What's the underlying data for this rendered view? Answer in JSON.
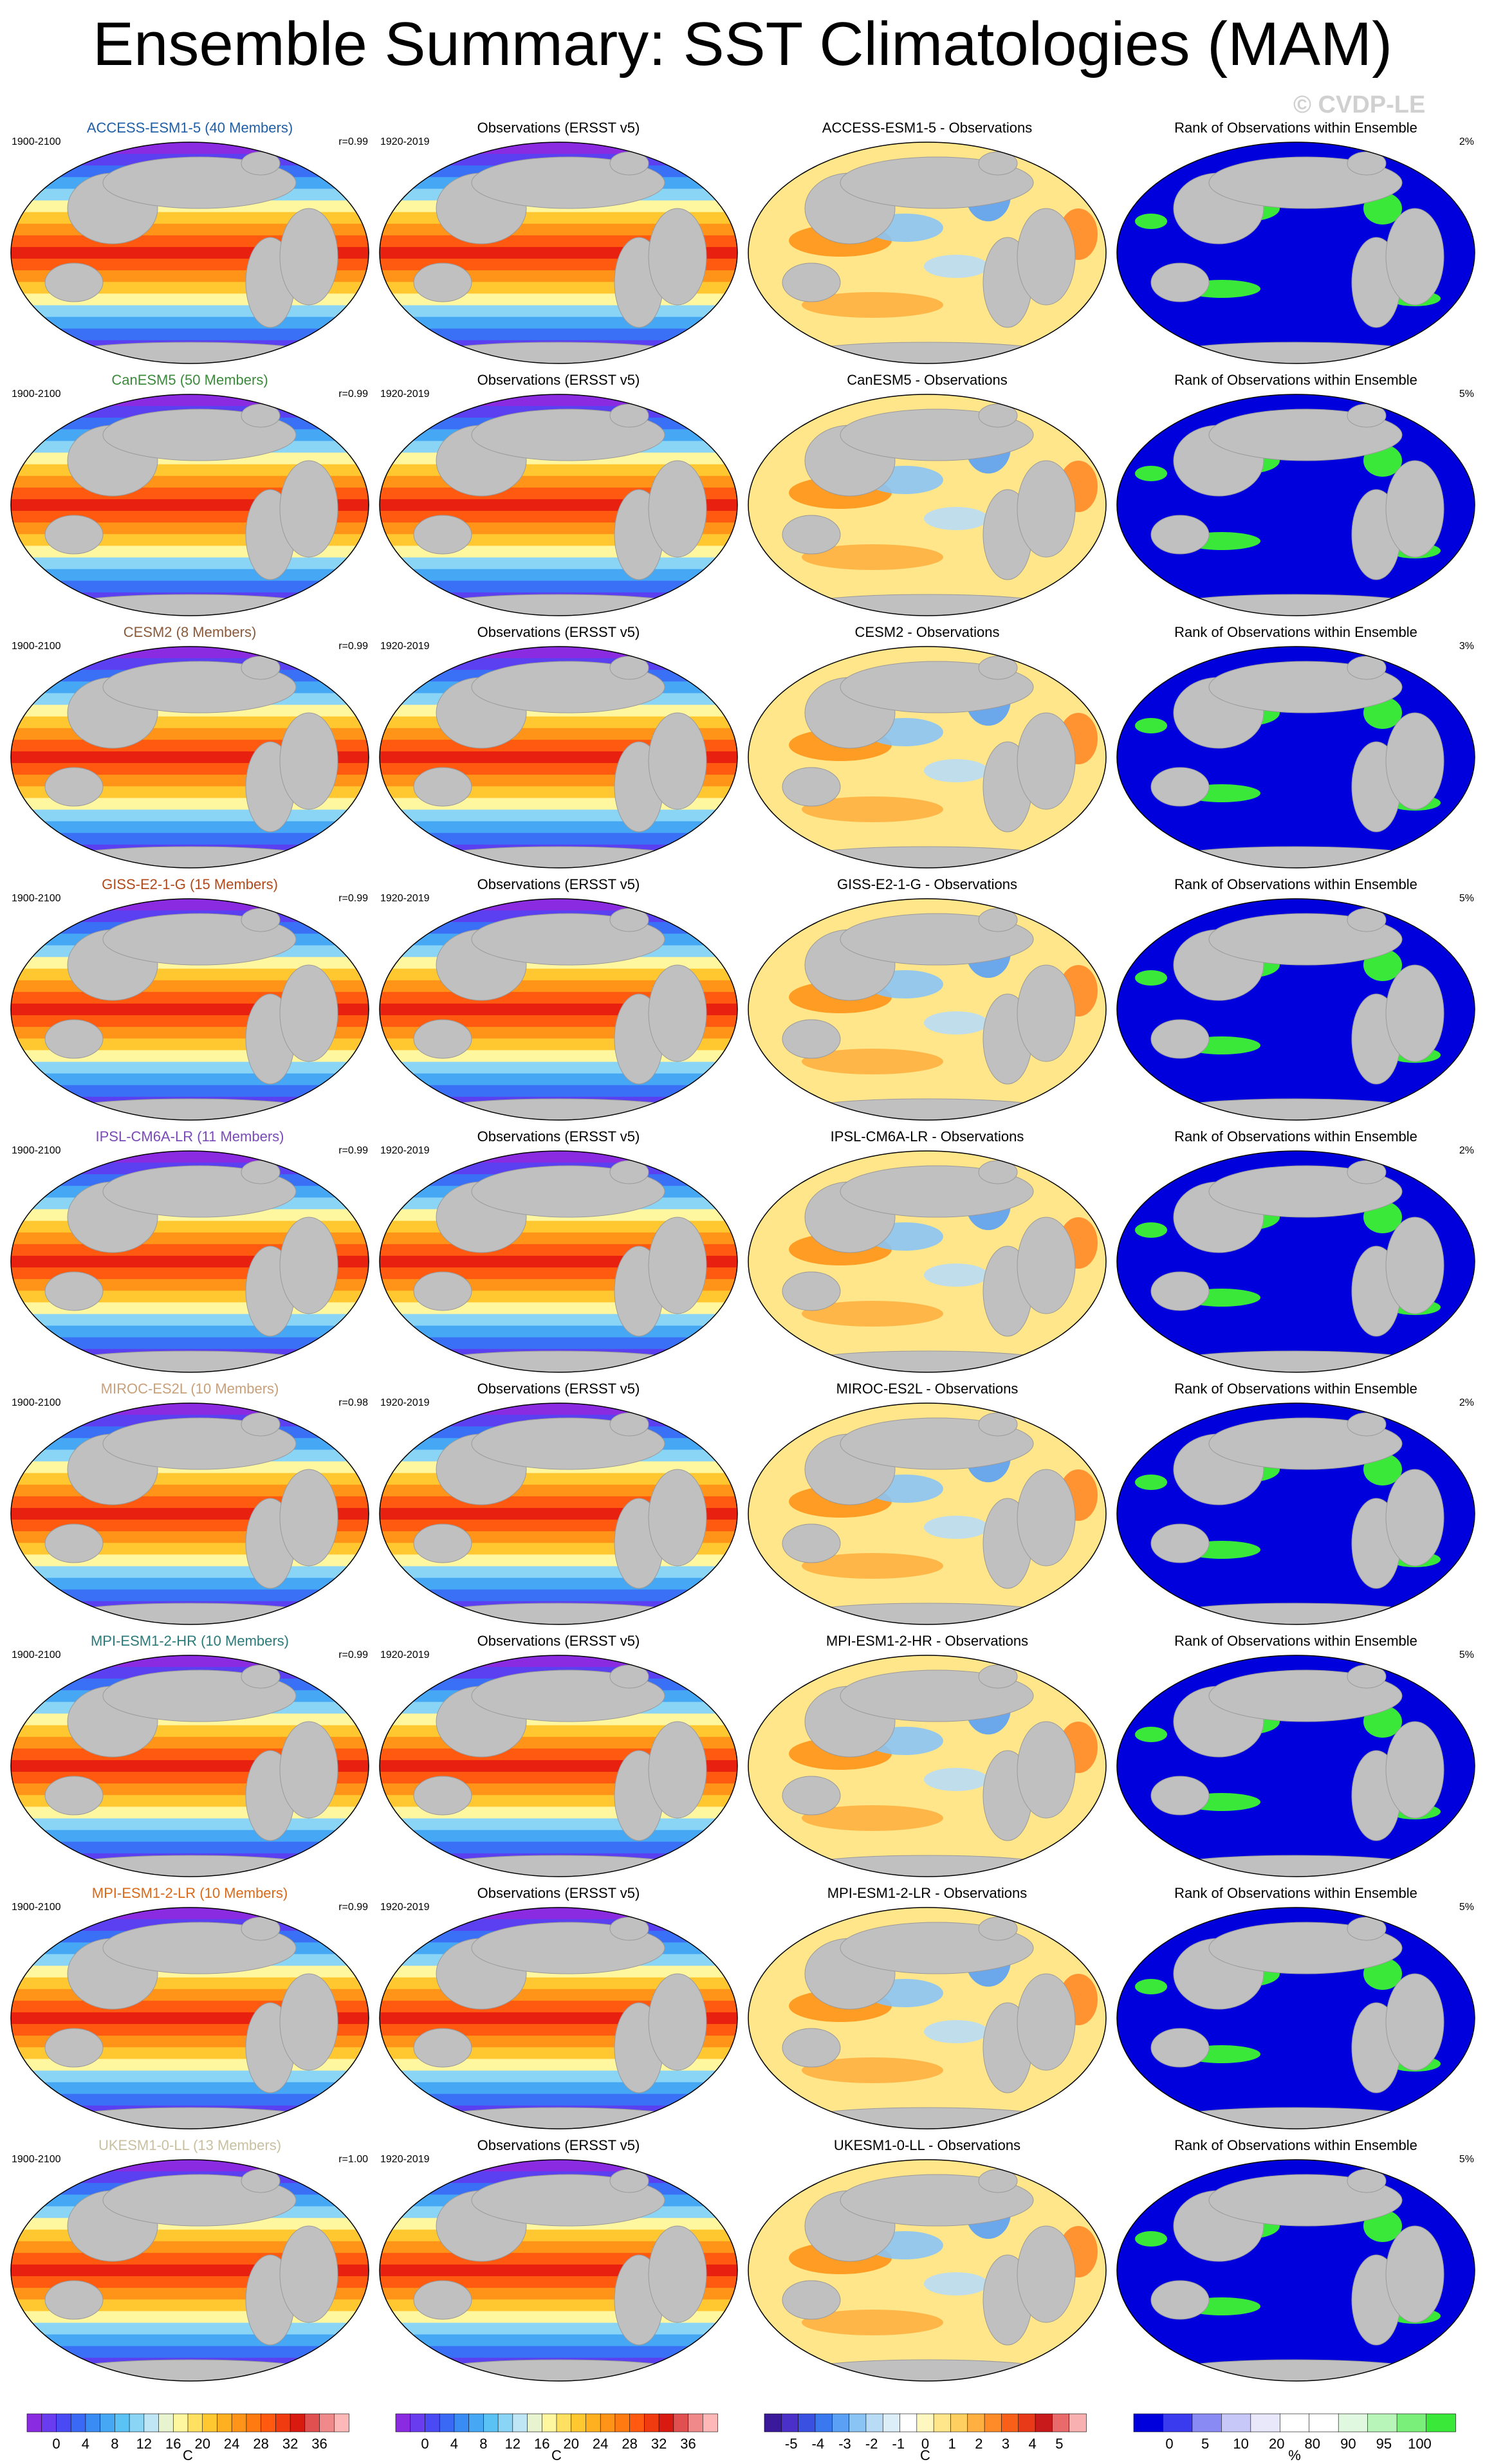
{
  "header": {
    "title": "Ensemble Summary: SST Climatologies (MAM)",
    "watermark": "© CVDP-LE"
  },
  "columns": {
    "observations_title": "Observations (ERSST v5)",
    "difference_suffix": " - Observations",
    "rank_title": "Rank of Observations within Ensemble"
  },
  "rows": [
    {
      "model": "ACCESS-ESM1-5 (40 Members)",
      "short": "ACCESS-ESM1-5",
      "model_color": "#1f5fa8",
      "model_years": "1900-2100",
      "obs_years": "1920-2019",
      "r": "r=0.99",
      "rank_pct": "2%"
    },
    {
      "model": "CanESM5 (50 Members)",
      "short": "CanESM5",
      "model_color": "#3b8a3b",
      "model_years": "1900-2100",
      "obs_years": "1920-2019",
      "r": "r=0.99",
      "rank_pct": "5%"
    },
    {
      "model": "CESM2 (8 Members)",
      "short": "CESM2",
      "model_color": "#8a5a3b",
      "model_years": "1900-2100",
      "obs_years": "1920-2019",
      "r": "r=0.99",
      "rank_pct": "3%"
    },
    {
      "model": "GISS-E2-1-G (15 Members)",
      "short": "GISS-E2-1-G",
      "model_color": "#b04a1a",
      "model_years": "1900-2100",
      "obs_years": "1920-2019",
      "r": "r=0.99",
      "rank_pct": "5%"
    },
    {
      "model": "IPSL-CM6A-LR (11 Members)",
      "short": "IPSL-CM6A-LR",
      "model_color": "#7a4ab8",
      "model_years": "1900-2100",
      "obs_years": "1920-2019",
      "r": "r=0.99",
      "rank_pct": "2%"
    },
    {
      "model": "MIROC-ES2L (10 Members)",
      "short": "MIROC-ES2L",
      "model_color": "#c8a07a",
      "model_years": "1900-2100",
      "obs_years": "1920-2019",
      "r": "r=0.98",
      "rank_pct": "2%"
    },
    {
      "model": "MPI-ESM1-2-HR (10 Members)",
      "short": "MPI-ESM1-2-HR",
      "model_color": "#2a7a7a",
      "model_years": "1900-2100",
      "obs_years": "1920-2019",
      "r": "r=0.99",
      "rank_pct": "5%"
    },
    {
      "model": "MPI-ESM1-2-LR (10 Members)",
      "short": "MPI-ESM1-2-LR",
      "model_color": "#d86a1a",
      "model_years": "1900-2100",
      "obs_years": "1920-2019",
      "r": "r=0.99",
      "rank_pct": "5%"
    },
    {
      "model": "UKESM1-0-LL (13 Members)",
      "short": "UKESM1-0-LL",
      "model_color": "#c8c0a0",
      "model_years": "1900-2100",
      "obs_years": "1920-2019",
      "r": "r=1.00",
      "rank_pct": "5%"
    }
  ],
  "colorbars": [
    {
      "ticks": [
        "0",
        "4",
        "8",
        "12",
        "16",
        "20",
        "24",
        "28",
        "32",
        "36"
      ],
      "unit": "C",
      "colors": [
        "#8a2be2",
        "#6a3cf0",
        "#4a4af5",
        "#3a6af5",
        "#3a8cf5",
        "#46a8f5",
        "#5ac2f5",
        "#8ad4f5",
        "#bfe6f5",
        "#e8f4d0",
        "#fff7a0",
        "#ffe060",
        "#ffc830",
        "#ffb020",
        "#ff9418",
        "#ff7a10",
        "#ff5a10",
        "#f03a10",
        "#d81a10",
        "#e05050",
        "#f08a8a",
        "#ffb8b8"
      ]
    },
    {
      "ticks": [
        "0",
        "4",
        "8",
        "12",
        "16",
        "20",
        "24",
        "28",
        "32",
        "36"
      ],
      "unit": "C",
      "colors": [
        "#8a2be2",
        "#6a3cf0",
        "#4a4af5",
        "#3a6af5",
        "#3a8cf5",
        "#46a8f5",
        "#5ac2f5",
        "#8ad4f5",
        "#bfe6f5",
        "#e8f4d0",
        "#fff7a0",
        "#ffe060",
        "#ffc830",
        "#ffb020",
        "#ff9418",
        "#ff7a10",
        "#ff5a10",
        "#f03a10",
        "#d81a10",
        "#e05050",
        "#f08a8a",
        "#ffb8b8"
      ]
    },
    {
      "ticks": [
        "-5",
        "-4",
        "-3",
        "-2",
        "-1",
        "0",
        "1",
        "2",
        "3",
        "4",
        "5"
      ],
      "unit": "C",
      "colors": [
        "#3a1a9a",
        "#4a30c8",
        "#3a50e0",
        "#3a78f0",
        "#5aa0f5",
        "#8ac4f5",
        "#b8dcf5",
        "#dceef8",
        "#ffffff",
        "#fff7c0",
        "#ffe68a",
        "#ffd060",
        "#ffb040",
        "#ff8a28",
        "#f8601a",
        "#e83a18",
        "#c81a1a",
        "#e86a6a",
        "#f8b0b0"
      ]
    },
    {
      "ticks": [
        "0",
        "5",
        "10",
        "20",
        "80",
        "90",
        "95",
        "100"
      ],
      "unit": "%",
      "colors": [
        "#0000dd",
        "#3a3aee",
        "#8a8af5",
        "#c8c8f8",
        "#e8e8fa",
        "#ffffff",
        "#ffffff",
        "#e0f8e0",
        "#b8f5b8",
        "#7af07a",
        "#3ae83a"
      ]
    }
  ]
}
